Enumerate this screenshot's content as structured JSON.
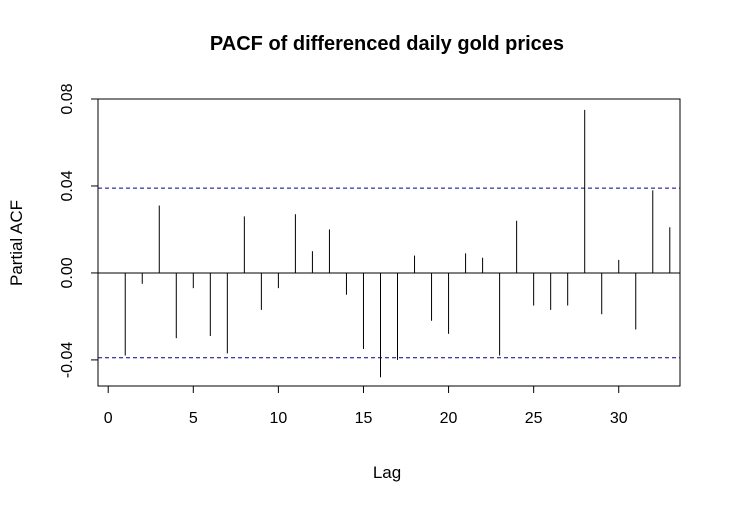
{
  "chart_data": {
    "type": "bar",
    "title": "PACF of differenced daily gold prices",
    "xlabel": "Lag",
    "ylabel": "Partial ACF",
    "xlim": [
      -0.6,
      33.6
    ],
    "ylim": [
      -0.052,
      0.08
    ],
    "x_ticks": [
      0,
      5,
      10,
      15,
      20,
      25,
      30
    ],
    "y_ticks": [
      -0.04,
      0.0,
      0.04,
      0.08
    ],
    "x_tick_labels": [
      "0",
      "5",
      "10",
      "15",
      "20",
      "25",
      "30"
    ],
    "y_tick_labels": [
      "-0.04",
      "0.00",
      "0.04",
      "0.08"
    ],
    "confidence_limit": 0.039,
    "confidence_color": "#00008b",
    "lags": [
      1,
      2,
      3,
      4,
      5,
      6,
      7,
      8,
      9,
      10,
      11,
      12,
      13,
      14,
      15,
      16,
      17,
      18,
      19,
      20,
      21,
      22,
      23,
      24,
      25,
      26,
      27,
      28,
      29,
      30,
      31,
      32,
      33
    ],
    "values": [
      -0.038,
      -0.005,
      0.031,
      -0.03,
      -0.007,
      -0.029,
      -0.037,
      0.026,
      -0.017,
      -0.007,
      0.027,
      0.01,
      0.02,
      -0.01,
      -0.035,
      -0.048,
      -0.04,
      0.008,
      -0.022,
      -0.028,
      0.009,
      0.007,
      -0.038,
      0.024,
      -0.015,
      -0.017,
      -0.015,
      0.075,
      -0.019,
      0.006,
      -0.026,
      0.038,
      0.021
    ],
    "grid": false,
    "legend": "none"
  }
}
